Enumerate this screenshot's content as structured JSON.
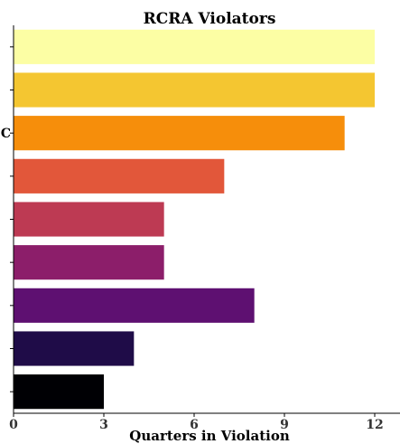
{
  "chart_data": {
    "type": "bar",
    "orientation": "horizontal",
    "title": "RCRA Violators",
    "xlabel": "Quarters in Violation",
    "ylabel": "",
    "xlim": [
      0,
      13
    ],
    "xticks": [
      0,
      3,
      6,
      9,
      12
    ],
    "categories": [
      "",
      "",
      "C",
      "",
      "",
      "",
      "",
      "",
      ""
    ],
    "values": [
      12,
      12,
      11,
      7,
      5,
      5,
      8,
      4,
      3
    ],
    "colors": [
      "#fcfea4",
      "#f4c631",
      "#f68e0b",
      "#e2573a",
      "#bd3a53",
      "#8c1e6a",
      "#5e1071",
      "#1f0c48",
      "#000004"
    ],
    "grid": false,
    "legend": "none"
  }
}
